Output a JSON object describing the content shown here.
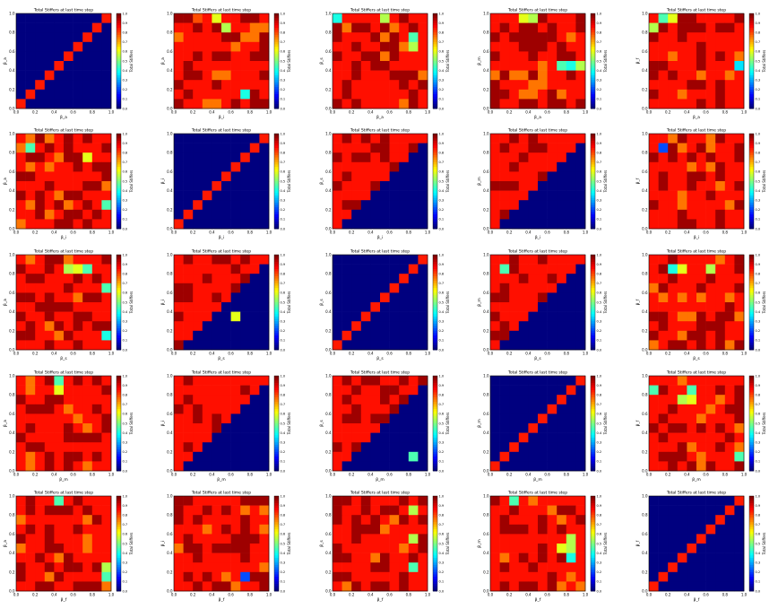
{
  "figure": {
    "panel_title": "Total Stiffers at last time step",
    "colorbar_label": "Total Stiffers"
  },
  "colormap": [
    "#00007f",
    "#0000ff",
    "#007fff",
    "#00ffff",
    "#7fff7f",
    "#ffff00",
    "#ff7f00",
    "#ff0000",
    "#7f0000"
  ],
  "chart_data": [
    {
      "type": "heatmap",
      "title": "Total Stiffers at last time step",
      "xlabel": "β_a",
      "ylabel": "β_a",
      "pattern": "diagonal",
      "cbar_ticks": [
        "0.0",
        "0.1",
        "0.2",
        "0.3",
        "0.4",
        "0.5",
        "0.6",
        "0.7",
        "0.8",
        "0.9",
        "1.0"
      ],
      "x_ticks": [
        "0.0",
        "0.2",
        "0.4",
        "0.6",
        "0.8",
        "1.0"
      ],
      "y_ticks": [
        "0.0",
        "0.2",
        "0.4",
        "0.6",
        "0.8",
        "1.0"
      ]
    },
    {
      "type": "heatmap",
      "title": "Total Stiffers at last time step",
      "xlabel": "β_i",
      "ylabel": "β_a",
      "pattern": "full",
      "cbar_ticks": [
        "0.0",
        "0.1",
        "0.2",
        "0.3",
        "0.4",
        "0.5",
        "0.6",
        "0.7",
        "0.8",
        "0.9",
        "1.0"
      ],
      "x_ticks": [
        "0.0",
        "0.2",
        "0.4",
        "0.6",
        "0.8",
        "1.0"
      ],
      "y_ticks": [
        "0.0",
        "0.2",
        "0.4",
        "0.6",
        "0.8",
        "1.0"
      ],
      "highlights": [
        [
          0,
          2,
          0.8
        ],
        [
          0,
          4,
          0.6
        ],
        [
          1,
          5,
          0.55
        ],
        [
          8,
          7,
          0.4
        ]
      ]
    },
    {
      "type": "heatmap",
      "title": "Total Stiffers at last time step",
      "xlabel": "β_a",
      "ylabel": "β_s",
      "pattern": "full",
      "cbar_ticks": [
        "0.0",
        "0.1",
        "0.2",
        "0.3",
        "0.4",
        "0.5",
        "0.6",
        "0.7",
        "0.8",
        "0.9",
        "1.0"
      ],
      "x_ticks": [
        "0.0",
        "0.2",
        "0.4",
        "0.6",
        "0.8",
        "1.0"
      ],
      "y_ticks": [
        "0.0",
        "0.2",
        "0.4",
        "0.6",
        "0.8",
        "1.0"
      ],
      "highlights": [
        [
          0,
          0,
          0.4
        ],
        [
          0,
          5,
          0.55
        ],
        [
          2,
          8,
          0.45
        ],
        [
          3,
          8,
          0.55
        ]
      ]
    },
    {
      "type": "heatmap",
      "title": "Total Stiffers at last time step",
      "xlabel": "β_a",
      "ylabel": "β_m",
      "pattern": "full",
      "cbar_ticks": [
        "0.0",
        "0.1",
        "0.2",
        "0.3",
        "0.4",
        "0.5",
        "0.6",
        "0.7",
        "0.8",
        "0.9",
        "1.0"
      ],
      "x_ticks": [
        "0.0",
        "0.2",
        "0.4",
        "0.6",
        "0.8",
        "1.0"
      ],
      "y_ticks": [
        "0.0",
        "0.2",
        "0.4",
        "0.6",
        "0.8",
        "1.0"
      ],
      "highlights": [
        [
          0,
          3,
          0.6
        ],
        [
          0,
          4,
          0.55
        ],
        [
          5,
          7,
          0.45
        ],
        [
          5,
          8,
          0.4
        ],
        [
          5,
          9,
          0.55
        ]
      ]
    },
    {
      "type": "heatmap",
      "title": "Total Stiffers at last time step",
      "xlabel": "β_a",
      "ylabel": "β_f",
      "pattern": "full",
      "cbar_ticks": [
        "0.0",
        "0.1",
        "0.2",
        "0.3",
        "0.4",
        "0.5",
        "0.6",
        "0.7",
        "0.8",
        "0.9",
        "1.0"
      ],
      "x_ticks": [
        "0.0",
        "0.2",
        "0.4",
        "0.6",
        "0.8",
        "1.0"
      ],
      "y_ticks": [
        "0.0",
        "0.2",
        "0.4",
        "0.6",
        "0.8",
        "1.0"
      ],
      "highlights": [
        [
          0,
          1,
          0.45
        ],
        [
          0,
          2,
          0.6
        ],
        [
          1,
          0,
          0.55
        ],
        [
          5,
          9,
          0.35
        ]
      ]
    },
    {
      "type": "heatmap",
      "title": "Total Stiffers at last time step",
      "xlabel": "β_i",
      "ylabel": "β_a",
      "pattern": "full",
      "cbar_ticks": [
        "0.0",
        "0.1",
        "0.2",
        "0.3",
        "0.4",
        "0.5",
        "0.6",
        "0.7",
        "0.8",
        "0.9",
        "1.0"
      ],
      "x_ticks": [
        "0.0",
        "0.2",
        "0.4",
        "0.6",
        "0.8",
        "1.0"
      ],
      "y_ticks": [
        "0.0",
        "0.2",
        "0.4",
        "0.6",
        "0.8",
        "1.0"
      ],
      "highlights": [
        [
          1,
          1,
          0.45
        ],
        [
          2,
          7,
          0.6
        ],
        [
          7,
          9,
          0.45
        ]
      ]
    },
    {
      "type": "heatmap",
      "title": "Total Stiffers at last time step",
      "xlabel": "β_i",
      "ylabel": "β_i",
      "pattern": "diagonal",
      "cbar_ticks": [
        "0.0",
        "0.1",
        "0.2",
        "0.3",
        "0.4",
        "0.5",
        "0.6",
        "0.7",
        "0.8",
        "0.9",
        "1.0"
      ],
      "x_ticks": [
        "0.0",
        "0.2",
        "0.4",
        "0.6",
        "0.8",
        "1.0"
      ],
      "y_ticks": [
        "0.0",
        "0.2",
        "0.4",
        "0.6",
        "0.8",
        "1.0"
      ]
    },
    {
      "type": "heatmap",
      "title": "Total Stiffers at last time step",
      "xlabel": "β_i",
      "ylabel": "β_s",
      "pattern": "triangle",
      "cbar_ticks": [
        "0.0",
        "0.1",
        "0.2",
        "0.3",
        "0.4",
        "0.5",
        "0.6",
        "0.7",
        "0.8",
        "0.9",
        "1.0"
      ],
      "x_ticks": [
        "0.0",
        "0.2",
        "0.4",
        "0.6",
        "0.8",
        "1.0"
      ],
      "y_ticks": [
        "0.0",
        "0.2",
        "0.4",
        "0.6",
        "0.8",
        "1.0"
      ]
    },
    {
      "type": "heatmap",
      "title": "Total Stiffers at last time step",
      "xlabel": "β_i",
      "ylabel": "β_m",
      "pattern": "triangle",
      "cbar_ticks": [
        "0.0",
        "0.1",
        "0.2",
        "0.3",
        "0.4",
        "0.5",
        "0.6",
        "0.7",
        "0.8",
        "0.9",
        "1.0"
      ],
      "x_ticks": [
        "0.0",
        "0.2",
        "0.4",
        "0.6",
        "0.8",
        "1.0"
      ],
      "y_ticks": [
        "0.0",
        "0.2",
        "0.4",
        "0.6",
        "0.8",
        "1.0"
      ]
    },
    {
      "type": "heatmap",
      "title": "Total Stiffers at last time step",
      "xlabel": "β_i",
      "ylabel": "β_f",
      "pattern": "full",
      "cbar_ticks": [
        "0.0",
        "0.1",
        "0.2",
        "0.3",
        "0.4",
        "0.5",
        "0.6",
        "0.7",
        "0.8",
        "0.9",
        "1.0"
      ],
      "x_ticks": [
        "0.0",
        "0.2",
        "0.4",
        "0.6",
        "0.8",
        "1.0"
      ],
      "y_ticks": [
        "0.0",
        "0.2",
        "0.4",
        "0.6",
        "0.8",
        "1.0"
      ],
      "highlights": [
        [
          1,
          1,
          0.2
        ]
      ]
    },
    {
      "type": "heatmap",
      "title": "Total Stiffers at last time step",
      "xlabel": "β_s",
      "ylabel": "β_a",
      "pattern": "full",
      "cbar_ticks": [
        "0.0",
        "0.1",
        "0.2",
        "0.3",
        "0.4",
        "0.5",
        "0.6",
        "0.7",
        "0.8",
        "0.9",
        "1.0"
      ],
      "x_ticks": [
        "0.0",
        "0.2",
        "0.4",
        "0.6",
        "0.8",
        "1.0"
      ],
      "y_ticks": [
        "0.0",
        "0.2",
        "0.4",
        "0.6",
        "0.8",
        "1.0"
      ],
      "highlights": [
        [
          1,
          5,
          0.55
        ],
        [
          1,
          6,
          0.6
        ],
        [
          1,
          7,
          0.45
        ],
        [
          3,
          9,
          0.45
        ],
        [
          8,
          9,
          0.4
        ]
      ]
    },
    {
      "type": "heatmap",
      "title": "Total Stiffers at last time step",
      "xlabel": "β_s",
      "ylabel": "β_i",
      "pattern": "triangle",
      "cbar_ticks": [
        "0.0",
        "0.1",
        "0.2",
        "0.3",
        "0.4",
        "0.5",
        "0.6",
        "0.7",
        "0.8",
        "0.9",
        "1.0"
      ],
      "x_ticks": [
        "0.0",
        "0.2",
        "0.4",
        "0.6",
        "0.8",
        "1.0"
      ],
      "y_ticks": [
        "0.0",
        "0.2",
        "0.4",
        "0.6",
        "0.8",
        "1.0"
      ],
      "highlights": [
        [
          6,
          6,
          0.6
        ]
      ]
    },
    {
      "type": "heatmap",
      "title": "Total Stiffers at last time step",
      "xlabel": "β_s",
      "ylabel": "β_s",
      "pattern": "diagonal",
      "cbar_ticks": [
        "0.0",
        "0.1",
        "0.2",
        "0.3",
        "0.4",
        "0.5",
        "0.6",
        "0.7",
        "0.8",
        "0.9",
        "1.0"
      ],
      "x_ticks": [
        "0.0",
        "0.2",
        "0.4",
        "0.6",
        "0.8",
        "1.0"
      ],
      "y_ticks": [
        "0.0",
        "0.2",
        "0.4",
        "0.6",
        "0.8",
        "1.0"
      ]
    },
    {
      "type": "heatmap",
      "title": "Total Stiffers at last time step",
      "xlabel": "β_s",
      "ylabel": "β_m",
      "pattern": "triangle",
      "cbar_ticks": [
        "0.0",
        "0.1",
        "0.2",
        "0.3",
        "0.4",
        "0.5",
        "0.6",
        "0.7",
        "0.8",
        "0.9",
        "1.0"
      ],
      "x_ticks": [
        "0.0",
        "0.2",
        "0.4",
        "0.6",
        "0.8",
        "1.0"
      ],
      "y_ticks": [
        "0.0",
        "0.2",
        "0.4",
        "0.6",
        "0.8",
        "1.0"
      ],
      "highlights": [
        [
          1,
          1,
          0.45
        ]
      ]
    },
    {
      "type": "heatmap",
      "title": "Total Stiffers at last time step",
      "xlabel": "β_s",
      "ylabel": "β_f",
      "pattern": "full",
      "cbar_ticks": [
        "0.0",
        "0.1",
        "0.2",
        "0.3",
        "0.4",
        "0.5",
        "0.6",
        "0.7",
        "0.8",
        "0.9",
        "1.0"
      ],
      "x_ticks": [
        "0.0",
        "0.2",
        "0.4",
        "0.6",
        "0.8",
        "1.0"
      ],
      "y_ticks": [
        "0.0",
        "0.2",
        "0.4",
        "0.6",
        "0.8",
        "1.0"
      ],
      "highlights": [
        [
          1,
          2,
          0.4
        ],
        [
          1,
          3,
          0.6
        ],
        [
          1,
          6,
          0.55
        ]
      ]
    },
    {
      "type": "heatmap",
      "title": "Total Stiffers at last time step",
      "xlabel": "β_m",
      "ylabel": "β_a",
      "pattern": "full",
      "cbar_ticks": [
        "0.0",
        "0.1",
        "0.2",
        "0.3",
        "0.4",
        "0.5",
        "0.6",
        "0.7",
        "0.8",
        "0.9",
        "1.0"
      ],
      "x_ticks": [
        "0.0",
        "0.2",
        "0.4",
        "0.6",
        "0.8",
        "1.0"
      ],
      "y_ticks": [
        "0.0",
        "0.2",
        "0.4",
        "0.6",
        "0.8",
        "1.0"
      ],
      "highlights": [
        [
          0,
          4,
          0.45
        ],
        [
          1,
          4,
          0.6
        ]
      ]
    },
    {
      "type": "heatmap",
      "title": "Total Stiffers at last time step",
      "xlabel": "β_m",
      "ylabel": "β_i",
      "pattern": "triangle",
      "cbar_ticks": [
        "0.0",
        "0.1",
        "0.2",
        "0.3",
        "0.4",
        "0.5",
        "0.6",
        "0.7",
        "0.8",
        "0.9",
        "1.0"
      ],
      "x_ticks": [
        "0.0",
        "0.2",
        "0.4",
        "0.6",
        "0.8",
        "1.0"
      ],
      "y_ticks": [
        "0.0",
        "0.2",
        "0.4",
        "0.6",
        "0.8",
        "1.0"
      ]
    },
    {
      "type": "heatmap",
      "title": "Total Stiffers at last time step",
      "xlabel": "β_m",
      "ylabel": "β_s",
      "pattern": "triangle",
      "cbar_ticks": [
        "0.0",
        "0.1",
        "0.2",
        "0.3",
        "0.4",
        "0.5",
        "0.6",
        "0.7",
        "0.8",
        "0.9",
        "1.0"
      ],
      "x_ticks": [
        "0.0",
        "0.2",
        "0.4",
        "0.6",
        "0.8",
        "1.0"
      ],
      "y_ticks": [
        "0.0",
        "0.2",
        "0.4",
        "0.6",
        "0.8",
        "1.0"
      ],
      "highlights": [
        [
          8,
          8,
          0.45
        ]
      ]
    },
    {
      "type": "heatmap",
      "title": "Total Stiffers at last time step",
      "xlabel": "β_m",
      "ylabel": "β_m",
      "pattern": "diagonal",
      "cbar_ticks": [
        "0.0",
        "0.1",
        "0.2",
        "0.3",
        "0.4",
        "0.5",
        "0.6",
        "0.7",
        "0.8",
        "0.9",
        "1.0"
      ],
      "x_ticks": [
        "0.0",
        "0.2",
        "0.4",
        "0.6",
        "0.8",
        "1.0"
      ],
      "y_ticks": [
        "0.0",
        "0.2",
        "0.4",
        "0.6",
        "0.8",
        "1.0"
      ]
    },
    {
      "type": "heatmap",
      "title": "Total Stiffers at last time step",
      "xlabel": "β_m",
      "ylabel": "β_f",
      "pattern": "full",
      "cbar_ticks": [
        "0.0",
        "0.1",
        "0.2",
        "0.3",
        "0.4",
        "0.5",
        "0.6",
        "0.7",
        "0.8",
        "0.9",
        "1.0"
      ],
      "x_ticks": [
        "0.0",
        "0.2",
        "0.4",
        "0.6",
        "0.8",
        "1.0"
      ],
      "y_ticks": [
        "0.0",
        "0.2",
        "0.4",
        "0.6",
        "0.8",
        "1.0"
      ],
      "highlights": [
        [
          1,
          0,
          0.45
        ],
        [
          1,
          4,
          0.45
        ],
        [
          2,
          3,
          0.55
        ],
        [
          2,
          4,
          0.6
        ],
        [
          8,
          9,
          0.45
        ]
      ]
    },
    {
      "type": "heatmap",
      "title": "Total Stiffers at last time step",
      "xlabel": "β_f",
      "ylabel": "β_a",
      "pattern": "full",
      "cbar_ticks": [
        "0.0",
        "0.1",
        "0.2",
        "0.3",
        "0.4",
        "0.5",
        "0.6",
        "0.7",
        "0.8",
        "0.9",
        "1.0"
      ],
      "x_ticks": [
        "0.0",
        "0.2",
        "0.4",
        "0.6",
        "0.8",
        "1.0"
      ],
      "y_ticks": [
        "0.0",
        "0.2",
        "0.4",
        "0.6",
        "0.8",
        "1.0"
      ],
      "highlights": [
        [
          0,
          4,
          0.45
        ],
        [
          7,
          9,
          0.55
        ],
        [
          8,
          9,
          0.45
        ]
      ]
    },
    {
      "type": "heatmap",
      "title": "Total Stiffers at last time step",
      "xlabel": "β_f",
      "ylabel": "β_i",
      "pattern": "full",
      "cbar_ticks": [
        "0.0",
        "0.1",
        "0.2",
        "0.3",
        "0.4",
        "0.5",
        "0.6",
        "0.7",
        "0.8",
        "0.9",
        "1.0"
      ],
      "x_ticks": [
        "0.0",
        "0.2",
        "0.4",
        "0.6",
        "0.8",
        "1.0"
      ],
      "y_ticks": [
        "0.0",
        "0.2",
        "0.4",
        "0.6",
        "0.8",
        "1.0"
      ],
      "highlights": [
        [
          8,
          7,
          0.2
        ]
      ]
    },
    {
      "type": "heatmap",
      "title": "Total Stiffers at last time step",
      "xlabel": "β_f",
      "ylabel": "β_s",
      "pattern": "full",
      "cbar_ticks": [
        "0.0",
        "0.1",
        "0.2",
        "0.3",
        "0.4",
        "0.5",
        "0.6",
        "0.7",
        "0.8",
        "0.9",
        "1.0"
      ],
      "x_ticks": [
        "0.0",
        "0.2",
        "0.4",
        "0.6",
        "0.8",
        "1.0"
      ],
      "y_ticks": [
        "0.0",
        "0.2",
        "0.4",
        "0.6",
        "0.8",
        "1.0"
      ],
      "highlights": [
        [
          1,
          8,
          0.55
        ],
        [
          4,
          8,
          0.55
        ],
        [
          7,
          8,
          0.45
        ]
      ]
    },
    {
      "type": "heatmap",
      "title": "Total Stiffers at last time step",
      "xlabel": "β_f",
      "ylabel": "β_m",
      "pattern": "full",
      "cbar_ticks": [
        "0.0",
        "0.1",
        "0.2",
        "0.3",
        "0.4",
        "0.5",
        "0.6",
        "0.7",
        "0.8",
        "0.9",
        "1.0"
      ],
      "x_ticks": [
        "0.0",
        "0.2",
        "0.4",
        "0.6",
        "0.8",
        "1.0"
      ],
      "y_ticks": [
        "0.0",
        "0.2",
        "0.4",
        "0.6",
        "0.8",
        "1.0"
      ],
      "highlights": [
        [
          0,
          2,
          0.45
        ],
        [
          4,
          8,
          0.55
        ],
        [
          5,
          7,
          0.6
        ],
        [
          5,
          8,
          0.55
        ],
        [
          6,
          8,
          0.4
        ]
      ]
    },
    {
      "type": "heatmap",
      "title": "Total Stiffers at last time step",
      "xlabel": "β_f",
      "ylabel": "β_f",
      "pattern": "diagonal",
      "cbar_ticks": [
        "0.0",
        "0.1",
        "0.2",
        "0.3",
        "0.4",
        "0.5",
        "0.6",
        "0.7",
        "0.8",
        "0.9",
        "1.0"
      ],
      "x_ticks": [
        "0.0",
        "0.2",
        "0.4",
        "0.6",
        "0.8",
        "1.0"
      ],
      "y_ticks": [
        "0.0",
        "0.2",
        "0.4",
        "0.6",
        "0.8",
        "1.0"
      ]
    }
  ]
}
